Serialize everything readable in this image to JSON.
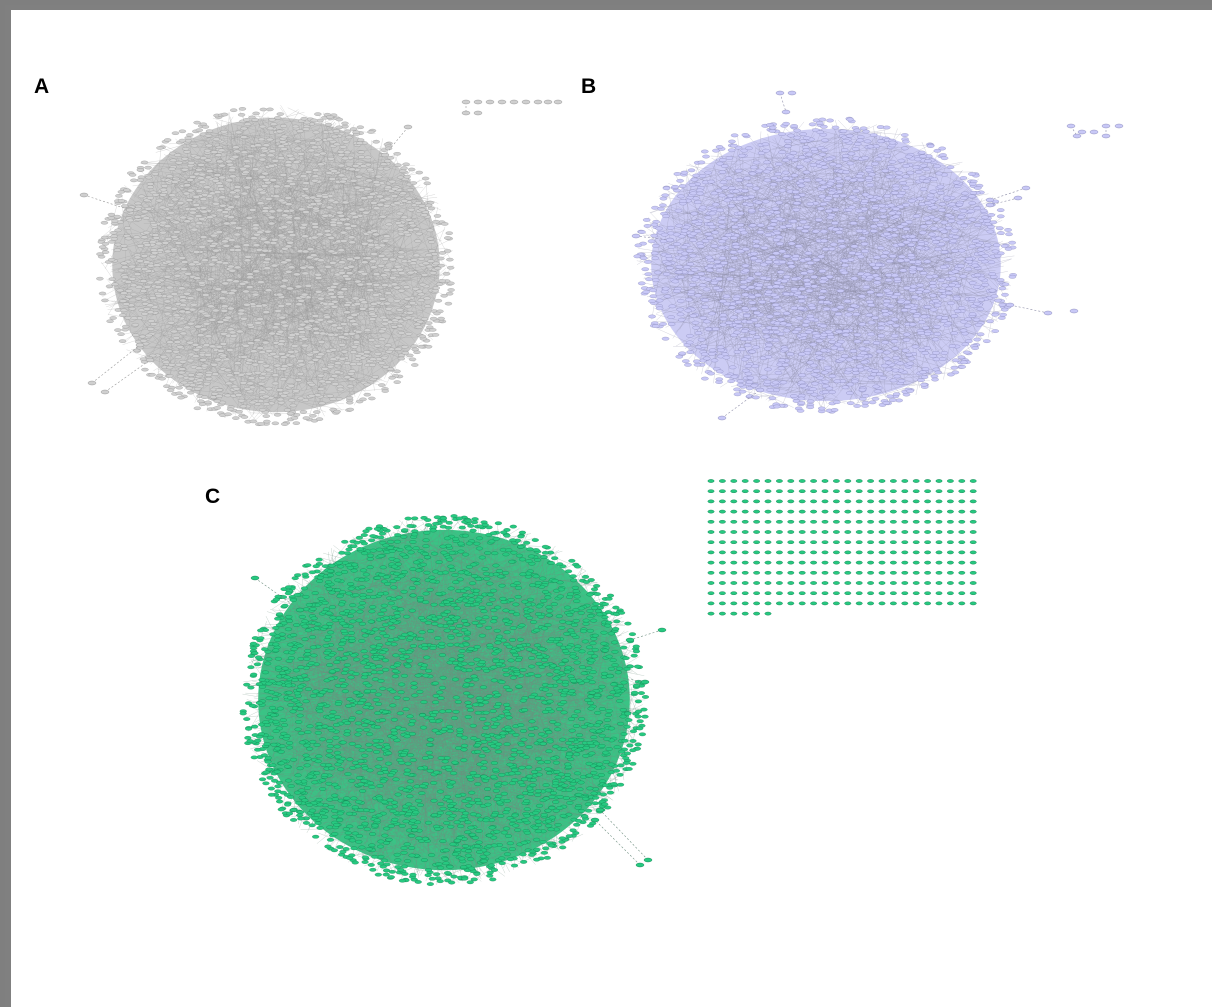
{
  "panels": [
    {
      "label": "A",
      "node_color": "#cfcfcf",
      "edge_color": "#9a9a9a",
      "core_color": "#bdbdbd",
      "outline_color": "#8a8a8a"
    },
    {
      "label": "B",
      "node_color": "#c8c8f6",
      "edge_color": "#8e8ea8",
      "core_color": "#c3c3f2",
      "outline_color": "#8080b0"
    },
    {
      "label": "C",
      "node_color": "#27c880",
      "edge_color": "#6f8f80",
      "core_color": "#18b870",
      "outline_color": "#0d7a4a"
    }
  ]
}
